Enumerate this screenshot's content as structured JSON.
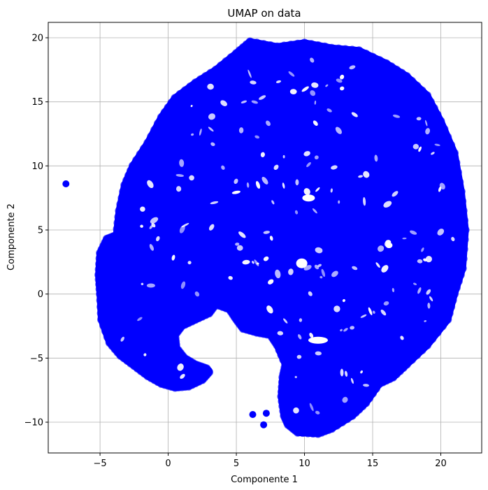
{
  "chart_data": {
    "type": "scatter",
    "title": "UMAP on data",
    "xlabel": "Componente 1",
    "ylabel": "Componente 2",
    "xlim": [
      -8.8,
      23.0
    ],
    "ylim": [
      -12.4,
      21.2
    ],
    "xticks": [
      -5,
      0,
      5,
      10,
      15,
      20
    ],
    "yticks": [
      -10,
      -5,
      0,
      5,
      10,
      15,
      20
    ],
    "grid": true,
    "point_color": "#0000ff",
    "point_alpha": 0.6,
    "series": [
      {
        "cluster_outline": [
          [
            6.0,
            19.7
          ],
          [
            8.0,
            19.3
          ],
          [
            10.0,
            19.6
          ],
          [
            12.0,
            19.2
          ],
          [
            14.0,
            19.0
          ],
          [
            16.0,
            18.0
          ],
          [
            17.5,
            17.0
          ],
          [
            19.0,
            15.5
          ],
          [
            20.0,
            13.5
          ],
          [
            21.0,
            11.0
          ],
          [
            21.5,
            8.0
          ],
          [
            21.8,
            5.0
          ],
          [
            21.6,
            2.0
          ],
          [
            21.0,
            0.0
          ],
          [
            20.5,
            -2.0
          ],
          [
            19.0,
            -4.0
          ],
          [
            17.5,
            -5.5
          ],
          [
            16.5,
            -6.5
          ],
          [
            15.5,
            -7.0
          ],
          [
            14.5,
            -8.5
          ],
          [
            13.5,
            -9.5
          ],
          [
            12.0,
            -10.5
          ],
          [
            11.0,
            -10.9
          ],
          [
            9.5,
            -10.8
          ],
          [
            8.8,
            -10.2
          ],
          [
            8.5,
            -9.5
          ],
          [
            8.3,
            -8.0
          ],
          [
            8.4,
            -6.5
          ],
          [
            8.6,
            -5.5
          ],
          [
            8.0,
            -4.0
          ],
          [
            7.5,
            -3.2
          ],
          [
            6.5,
            -3.0
          ],
          [
            5.5,
            -2.7
          ],
          [
            5.0,
            -2.0
          ],
          [
            4.5,
            -1.2
          ],
          [
            3.5,
            -0.8
          ],
          [
            3.0,
            -1.5
          ],
          [
            2.0,
            -2.0
          ],
          [
            1.0,
            -2.5
          ],
          [
            0.5,
            -3.2
          ],
          [
            0.6,
            -4.2
          ],
          [
            1.2,
            -5.0
          ],
          [
            2.0,
            -5.5
          ],
          [
            2.8,
            -5.8
          ],
          [
            3.0,
            -6.1
          ],
          [
            2.5,
            -6.7
          ],
          [
            1.5,
            -7.2
          ],
          [
            0.5,
            -7.3
          ],
          [
            -0.5,
            -7.0
          ],
          [
            -1.5,
            -6.4
          ],
          [
            -2.5,
            -5.6
          ],
          [
            -3.5,
            -4.8
          ],
          [
            -4.3,
            -3.8
          ],
          [
            -4.9,
            -2.0
          ],
          [
            -5.0,
            0.0
          ],
          [
            -5.1,
            1.5
          ],
          [
            -5.0,
            3.2
          ],
          [
            -4.5,
            4.3
          ],
          [
            -3.8,
            4.6
          ],
          [
            -3.6,
            6.5
          ],
          [
            -3.2,
            8.5
          ],
          [
            -2.6,
            10.0
          ],
          [
            -1.5,
            11.8
          ],
          [
            -0.5,
            13.8
          ],
          [
            0.5,
            15.3
          ],
          [
            2.0,
            16.5
          ],
          [
            3.5,
            17.5
          ],
          [
            5.0,
            18.8
          ]
        ],
        "tail_points": [
          [
            3.0,
            -6.0
          ],
          [
            2.7,
            -6.3
          ],
          [
            7.2,
            -9.3
          ],
          [
            7.0,
            -10.2
          ],
          [
            6.2,
            -9.4
          ]
        ],
        "outlier": [
          -7.5,
          8.6
        ]
      }
    ]
  }
}
